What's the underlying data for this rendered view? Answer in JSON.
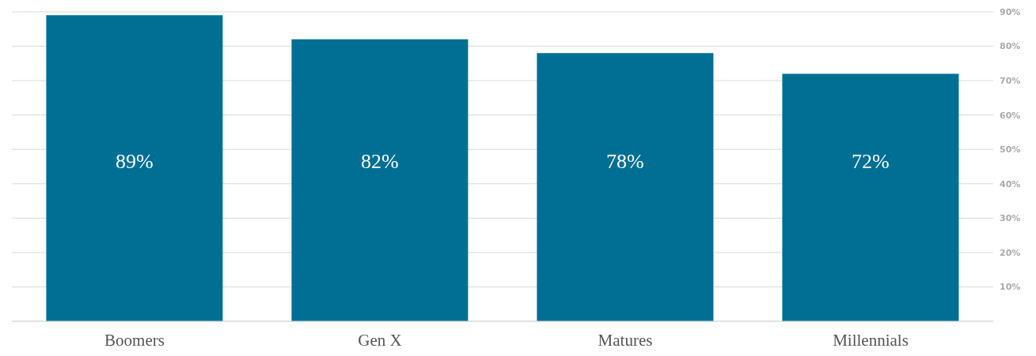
{
  "chart_data": {
    "type": "bar",
    "categories": [
      "Boomers",
      "Gen X",
      "Matures",
      "Millennials"
    ],
    "values": [
      89,
      82,
      78,
      72
    ],
    "color": "#006f94",
    "value_labels": [
      "89%",
      "82%",
      "78%",
      "72%"
    ],
    "ylim": [
      0,
      90
    ],
    "yticks": [
      {
        "value": 0,
        "label": null
      },
      {
        "value": 10,
        "label": "10%"
      },
      {
        "value": 20,
        "label": "20%"
      },
      {
        "value": 30,
        "label": "30%"
      },
      {
        "value": 40,
        "label": "40%"
      },
      {
        "value": 50,
        "label": "50%"
      },
      {
        "value": 60,
        "label": "60%"
      },
      {
        "value": 70,
        "label": "70%"
      },
      {
        "value": 80,
        "label": "80%"
      },
      {
        "value": 90,
        "label": "90%"
      }
    ],
    "grid": "y"
  }
}
